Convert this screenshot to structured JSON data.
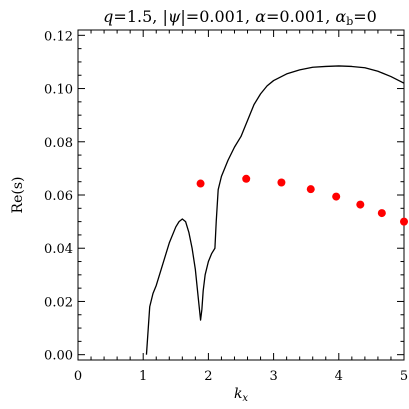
{
  "chart_data": {
    "type": "line",
    "title": "q=1.5, |ψ|=0.001, α=0.001, α_b=0",
    "title_parts": {
      "q": "q",
      "q_eq": "=1.5, |",
      "psi": "ψ",
      "psi_eq": "|=0.001, ",
      "alpha": "α",
      "alpha_eq": "=0.001, ",
      "alpha_b": "α",
      "alpha_b_sub": "b",
      "alpha_b_eq": "=0"
    },
    "xlabel": "k",
    "xlabel_sub": "x",
    "ylabel": "Re(s)",
    "xlim": [
      0,
      5
    ],
    "ylim": [
      -0.002,
      0.122
    ],
    "x_ticks": [
      0,
      1,
      2,
      3,
      4,
      5
    ],
    "x_tick_labels": [
      "0",
      "1",
      "2",
      "3",
      "4",
      "5"
    ],
    "y_ticks": [
      0.0,
      0.02,
      0.04,
      0.06,
      0.08,
      0.1,
      0.12
    ],
    "y_tick_labels": [
      "0.00",
      "0.02",
      "0.04",
      "0.06",
      "0.08",
      "0.10",
      "0.12"
    ],
    "grid": false,
    "series": [
      {
        "style": "line",
        "color": "#000000",
        "x": [
          1.05,
          1.1,
          1.15,
          1.2,
          1.3,
          1.4,
          1.5,
          1.55,
          1.6,
          1.65,
          1.7,
          1.75,
          1.8,
          1.85,
          1.88,
          1.9,
          1.92,
          1.95,
          2.0,
          2.05,
          2.1,
          2.12,
          2.15,
          2.2,
          2.3,
          2.4,
          2.5,
          2.6,
          2.7,
          2.8,
          2.9,
          3.0,
          3.2,
          3.4,
          3.6,
          3.8,
          4.0,
          4.2,
          4.4,
          4.6,
          4.8,
          5.0
        ],
        "y": [
          0.0,
          0.018,
          0.023,
          0.026,
          0.034,
          0.042,
          0.048,
          0.05,
          0.051,
          0.05,
          0.046,
          0.04,
          0.032,
          0.02,
          0.013,
          0.017,
          0.024,
          0.03,
          0.035,
          0.038,
          0.04,
          0.05,
          0.062,
          0.067,
          0.073,
          0.078,
          0.082,
          0.088,
          0.094,
          0.098,
          0.101,
          0.103,
          0.1055,
          0.107,
          0.108,
          0.1083,
          0.1085,
          0.1083,
          0.1078,
          0.1065,
          0.1045,
          0.102
        ]
      },
      {
        "style": "scatter",
        "color": "#ff0000",
        "x": [
          1.88,
          2.58,
          3.12,
          3.57,
          3.96,
          4.33,
          4.66,
          5.0
        ],
        "y": [
          0.0643,
          0.0661,
          0.0647,
          0.0622,
          0.0594,
          0.0564,
          0.0532,
          0.05
        ]
      }
    ]
  }
}
